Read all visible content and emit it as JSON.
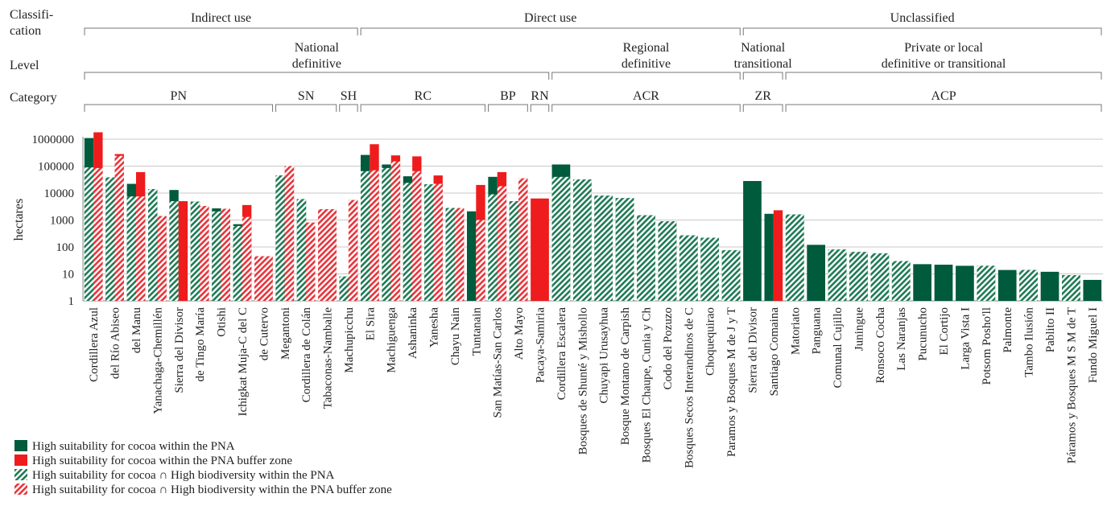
{
  "row_labels": {
    "classification": "Classifi-\ncation",
    "level": "Level",
    "category": "Category"
  },
  "classification_groups": [
    {
      "label": "Indirect use",
      "from": "Cordillera Azul",
      "to": "Machupicchu"
    },
    {
      "label": "Direct use",
      "from": "El Sira",
      "to": "Paramos y Bosques M de J y T"
    },
    {
      "label": "Unclassified",
      "from": "Sierra del Divisor",
      "to": "Fundo Miguel I"
    }
  ],
  "level_groups": [
    {
      "label": "National\ndefinitive",
      "from": "Cordillera Azul",
      "to": "Pacaya-Samiria"
    },
    {
      "label": "Regional\ndefinitive",
      "from": "Cordillera Escalera",
      "to": "Paramos y Bosques M de J y T"
    },
    {
      "label": "National\ntransitional",
      "from": "Sierra del Divisor",
      "to": "Santiago Comaina"
    },
    {
      "label": "Private or local\ndefinitive or transitional",
      "from": "Matoriato",
      "to": "Fundo Miguel I"
    }
  ],
  "category_groups": [
    {
      "label": "PN",
      "from": "Cordillera Azul",
      "to": "de Cutervo"
    },
    {
      "label": "SN",
      "from": "Megantoni",
      "to": "Tabaconas-Namballe"
    },
    {
      "label": "SH",
      "from": "Machupicchu",
      "to": "Machupicchu"
    },
    {
      "label": "RC",
      "from": "El Sira",
      "to": "Tuntanain"
    },
    {
      "label": "BP",
      "from": "San Matías-San Carlos",
      "to": "Alto Mayo"
    },
    {
      "label": "RN",
      "from": "Pacaya-Samiria",
      "to": "Pacaya-Samiria"
    },
    {
      "label": "ACR",
      "from": "Cordillera Escalera",
      "to": "Paramos y Bosques M de J y T"
    },
    {
      "label": "ZR",
      "from": "Sierra del Divisor",
      "to": "Santiago Comaina"
    },
    {
      "label": "ACP",
      "from": "Matoriato",
      "to": "Fundo Miguel I"
    }
  ],
  "legend": [
    {
      "label": "High suitability for cocoa within the PNA",
      "pattern": "solid",
      "color": "#005a3c"
    },
    {
      "label": "High suitability for cocoa within the PNA buffer zone",
      "pattern": "solid",
      "color": "#ee1c1c"
    },
    {
      "label": "High suitability for cocoa ∩ High biodiversity within the PNA",
      "pattern": "hatched",
      "color": "#1f7a55"
    },
    {
      "label": "High suitability for cocoa ∩ High biodiversity within the PNA buffer zone",
      "pattern": "hatched",
      "color": "#e8343b"
    }
  ],
  "chart_data": {
    "type": "bar",
    "ylabel": "hectares",
    "yscale": "log",
    "ylim": [
      1,
      1000000
    ],
    "yticks": [
      "1",
      "10",
      "100",
      "1000",
      "10000",
      "100000",
      "1000000"
    ],
    "grid": true,
    "legend_position": "bottom-left",
    "colors": {
      "pna": "#005a3c",
      "buffer": "#ee1c1c",
      "pna_hatch": "#1f7a55",
      "buffer_hatch": "#e8343b"
    },
    "series": [
      {
        "name": "High suitability for cocoa within the PNA",
        "key": "pna_suit"
      },
      {
        "name": "High suitability for cocoa within the PNA buffer zone",
        "key": "buf_suit"
      },
      {
        "name": "High suitability for cocoa ∩ High biodiversity within the PNA",
        "key": "pna_bio"
      },
      {
        "name": "High suitability for cocoa ∩ High biodiversity within the PNA buffer zone",
        "key": "buf_bio"
      }
    ],
    "categories": [
      {
        "name": "Cordillera Azul",
        "pna_suit": 1100000,
        "pna_bio": 90000,
        "buf_suit": 1800000,
        "buf_bio": 85000
      },
      {
        "name": "del Río Abiseo",
        "pna_suit": 38000,
        "pna_bio": 38000,
        "buf_suit": 280000,
        "buf_bio": 240000
      },
      {
        "name": "del Manu",
        "pna_suit": 22000,
        "pna_bio": 7500,
        "buf_suit": 60000,
        "buf_bio": 7500
      },
      {
        "name": "Yanachaga-Chemillén",
        "pna_suit": 14000,
        "pna_bio": 14000,
        "buf_suit": 1400,
        "buf_bio": 1400
      },
      {
        "name": "Sierra del Divisor",
        "pna_suit": 13000,
        "pna_bio": 5000,
        "buf_suit": 5000,
        "buf_bio": null
      },
      {
        "name": "de Tingo María",
        "pna_suit": 4800,
        "pna_bio": 4800,
        "buf_suit": 3300,
        "buf_bio": 3300
      },
      {
        "name": "Otishi",
        "pna_suit": 2700,
        "pna_bio": 2100,
        "buf_suit": 2600,
        "buf_bio": 2600
      },
      {
        "name": "Ichigkat Muja-C del C",
        "pna_suit": 700,
        "pna_bio": 600,
        "buf_suit": 3600,
        "buf_bio": 1300
      },
      {
        "name": "de Cutervo",
        "pna_suit": null,
        "pna_bio": null,
        "buf_suit": 45,
        "buf_bio": 45
      },
      {
        "name": "Megantoni",
        "pna_suit": 45000,
        "pna_bio": 45000,
        "buf_suit": 100000,
        "buf_bio": 100000
      },
      {
        "name": "Cordillera de Colán",
        "pna_suit": 6000,
        "pna_bio": 6000,
        "buf_suit": 800,
        "buf_bio": 800
      },
      {
        "name": "Tabaconas-Namballe",
        "pna_suit": null,
        "pna_bio": null,
        "buf_suit": 2500,
        "buf_bio": 2500
      },
      {
        "name": "Machupicchu",
        "pna_suit": 8,
        "pna_bio": 8,
        "buf_suit": 5500,
        "buf_bio": 5500
      },
      {
        "name": "El Sira",
        "pna_suit": 260000,
        "pna_bio": 65000,
        "buf_suit": 650000,
        "buf_bio": 70000
      },
      {
        "name": "Machiguenga",
        "pna_suit": 115000,
        "pna_bio": 85000,
        "buf_suit": 250000,
        "buf_bio": 150000
      },
      {
        "name": "Ashaninka",
        "pna_suit": 42000,
        "pna_bio": 24000,
        "buf_suit": 230000,
        "buf_bio": 65000
      },
      {
        "name": "Yanesha",
        "pna_suit": 21000,
        "pna_bio": 21000,
        "buf_suit": 45000,
        "buf_bio": 22000
      },
      {
        "name": "Chayu Nain",
        "pna_suit": 2800,
        "pna_bio": 2800,
        "buf_suit": 2800,
        "buf_bio": 2800
      },
      {
        "name": "Tuntanain",
        "pna_suit": 2100,
        "pna_bio": null,
        "buf_suit": 20000,
        "buf_bio": 1000
      },
      {
        "name": "San Matías-San Carlos",
        "pna_suit": 40000,
        "pna_bio": 9000,
        "buf_suit": 60000,
        "buf_bio": 18000
      },
      {
        "name": "Alto Mayo",
        "pna_suit": 5000,
        "pna_bio": 5000,
        "buf_suit": 35000,
        "buf_bio": 35000
      },
      {
        "name": "Pacaya-Samiria",
        "pna_suit": null,
        "pna_bio": null,
        "buf_suit": 6300,
        "buf_bio": null
      },
      {
        "name": "Cordillera Escalera",
        "pna_suit": 115000,
        "pna_bio": 40000,
        "buf_suit": null,
        "buf_bio": null
      },
      {
        "name": "Bosques de Shunté y Mishollo",
        "pna_suit": 32000,
        "pna_bio": 32000,
        "buf_suit": null,
        "buf_bio": null
      },
      {
        "name": "Chuyapi Urusayhua",
        "pna_suit": 8000,
        "pna_bio": 8000,
        "buf_suit": null,
        "buf_bio": null
      },
      {
        "name": "Bosque Montano de Carpish",
        "pna_suit": 6500,
        "pna_bio": 6500,
        "buf_suit": null,
        "buf_bio": null
      },
      {
        "name": "Bosques El Chaupe, Cunia y Ch",
        "pna_suit": 1500,
        "pna_bio": 1500,
        "buf_suit": null,
        "buf_bio": null
      },
      {
        "name": "Codo del Pozuzo",
        "pna_suit": 900,
        "pna_bio": 900,
        "buf_suit": null,
        "buf_bio": null
      },
      {
        "name": "Bosques Secos Interandinos de C",
        "pna_suit": 270,
        "pna_bio": 270,
        "buf_suit": null,
        "buf_bio": null
      },
      {
        "name": "Choquequirao",
        "pna_suit": 220,
        "pna_bio": 220,
        "buf_suit": null,
        "buf_bio": null
      },
      {
        "name": "Paramos y Bosques M de J y T",
        "pna_suit": 75,
        "pna_bio": 75,
        "buf_suit": null,
        "buf_bio": null
      },
      {
        "name": "Sierra del Divisor",
        "pna_suit": 28000,
        "pna_bio": null,
        "buf_suit": null,
        "buf_bio": null
      },
      {
        "name": "Santiago Comaina",
        "pna_suit": 1700,
        "pna_bio": null,
        "buf_suit": 2300,
        "buf_bio": null
      },
      {
        "name": "Matoriato",
        "pna_suit": 1600,
        "pna_bio": 1600,
        "buf_suit": null,
        "buf_bio": null
      },
      {
        "name": "Panguana",
        "pna_suit": 120,
        "pna_bio": null,
        "buf_suit": null,
        "buf_bio": null
      },
      {
        "name": "Comunal Cujillo",
        "pna_suit": 80,
        "pna_bio": 80,
        "buf_suit": null,
        "buf_bio": null
      },
      {
        "name": "Juningue",
        "pna_suit": 65,
        "pna_bio": 65,
        "buf_suit": null,
        "buf_bio": null
      },
      {
        "name": "Ronsoco Cocha",
        "pna_suit": 58,
        "pna_bio": 58,
        "buf_suit": null,
        "buf_bio": null
      },
      {
        "name": "Las Naranjas",
        "pna_suit": 30,
        "pna_bio": 30,
        "buf_suit": null,
        "buf_bio": null
      },
      {
        "name": "Pucunucho",
        "pna_suit": 23,
        "pna_bio": null,
        "buf_suit": null,
        "buf_bio": null
      },
      {
        "name": "El Cortijo",
        "pna_suit": 22,
        "pna_bio": null,
        "buf_suit": null,
        "buf_bio": null
      },
      {
        "name": "Larga Vista I",
        "pna_suit": 20,
        "pna_bio": null,
        "buf_suit": null,
        "buf_bio": null
      },
      {
        "name": "Potsom Posho'll",
        "pna_suit": 20,
        "pna_bio": 20,
        "buf_suit": null,
        "buf_bio": null
      },
      {
        "name": "Palmonte",
        "pna_suit": 14,
        "pna_bio": null,
        "buf_suit": null,
        "buf_bio": null
      },
      {
        "name": "Tambo Ilusión",
        "pna_suit": 14,
        "pna_bio": 14,
        "buf_suit": null,
        "buf_bio": null
      },
      {
        "name": "Pablito II",
        "pna_suit": 12,
        "pna_bio": null,
        "buf_suit": null,
        "buf_bio": null
      },
      {
        "name": "Páramos y Bosques M S M de T",
        "pna_suit": 9,
        "pna_bio": 9,
        "buf_suit": null,
        "buf_bio": null
      },
      {
        "name": "Fundo Miguel I",
        "pna_suit": 6,
        "pna_bio": null,
        "buf_suit": null,
        "buf_bio": null
      }
    ]
  }
}
